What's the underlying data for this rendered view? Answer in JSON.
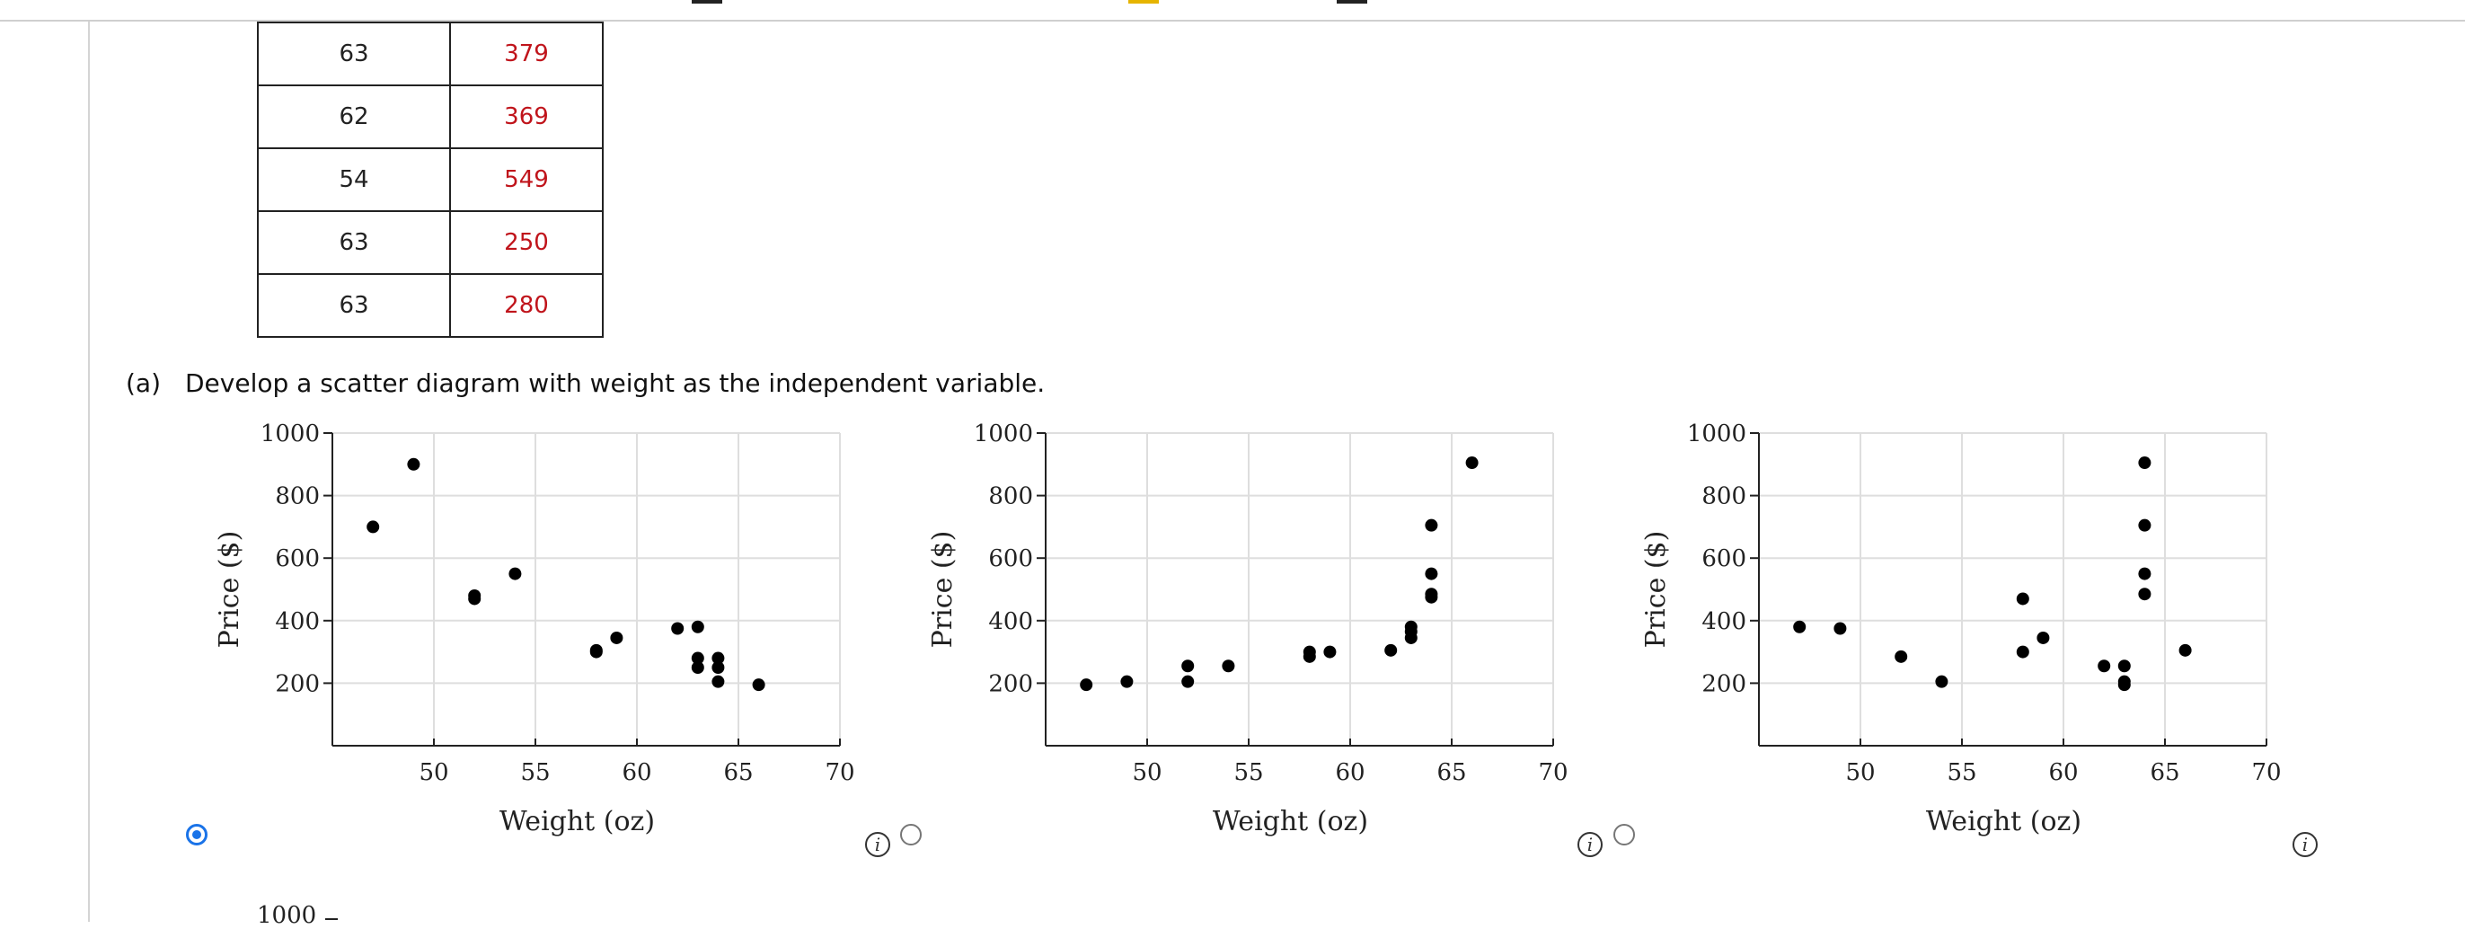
{
  "table": {
    "rows": [
      {
        "weight": "63",
        "price": "379"
      },
      {
        "weight": "62",
        "price": "369"
      },
      {
        "weight": "54",
        "price": "549"
      },
      {
        "weight": "63",
        "price": "250"
      },
      {
        "weight": "63",
        "price": "280"
      }
    ]
  },
  "question": {
    "label": "(a)",
    "text": "Develop a scatter diagram with weight as the independent variable."
  },
  "next_chart_first_tick": "1000",
  "colors": {
    "accent": "#1a73e8",
    "price_text": "#c0141b",
    "point": "#000000"
  },
  "chart_data": [
    {
      "type": "scatter",
      "selected": true,
      "xlabel": "Weight (oz)",
      "ylabel": "Price ($)",
      "xlim": [
        45,
        70
      ],
      "ylim": [
        0,
        1000
      ],
      "xticks": [
        50,
        55,
        60,
        65,
        70
      ],
      "yticks": [
        200,
        400,
        600,
        800,
        1000
      ],
      "grid": true,
      "points": [
        [
          47,
          700
        ],
        [
          49,
          900
        ],
        [
          52,
          470
        ],
        [
          52,
          480
        ],
        [
          54,
          550
        ],
        [
          58,
          300
        ],
        [
          58,
          305
        ],
        [
          59,
          345
        ],
        [
          62,
          375
        ],
        [
          63,
          380
        ],
        [
          63,
          250
        ],
        [
          63,
          280
        ],
        [
          64,
          280
        ],
        [
          64,
          250
        ],
        [
          64,
          205
        ],
        [
          66,
          195
        ]
      ]
    },
    {
      "type": "scatter",
      "selected": false,
      "xlabel": "Weight (oz)",
      "ylabel": "Price ($)",
      "xlim": [
        45,
        70
      ],
      "ylim": [
        0,
        1000
      ],
      "xticks": [
        50,
        55,
        60,
        65,
        70
      ],
      "yticks": [
        200,
        400,
        600,
        800,
        1000
      ],
      "grid": true,
      "points": [
        [
          47,
          195
        ],
        [
          49,
          205
        ],
        [
          52,
          205
        ],
        [
          52,
          255
        ],
        [
          54,
          255
        ],
        [
          58,
          285
        ],
        [
          58,
          300
        ],
        [
          59,
          300
        ],
        [
          62,
          305
        ],
        [
          63,
          345
        ],
        [
          63,
          365
        ],
        [
          63,
          380
        ],
        [
          64,
          475
        ],
        [
          64,
          485
        ],
        [
          64,
          550
        ],
        [
          64,
          705
        ],
        [
          66,
          905
        ]
      ]
    },
    {
      "type": "scatter",
      "selected": false,
      "xlabel": "Weight (oz)",
      "ylabel": "Price ($)",
      "xlim": [
        45,
        70
      ],
      "ylim": [
        0,
        1000
      ],
      "xticks": [
        50,
        55,
        60,
        65,
        70
      ],
      "yticks": [
        200,
        400,
        600,
        800,
        1000
      ],
      "grid": true,
      "points": [
        [
          47,
          380
        ],
        [
          49,
          375
        ],
        [
          52,
          285
        ],
        [
          54,
          205
        ],
        [
          58,
          470
        ],
        [
          58,
          300
        ],
        [
          59,
          345
        ],
        [
          62,
          255
        ],
        [
          63,
          255
        ],
        [
          63,
          205
        ],
        [
          63,
          195
        ],
        [
          64,
          905
        ],
        [
          64,
          705
        ],
        [
          64,
          550
        ],
        [
          64,
          485
        ],
        [
          66,
          305
        ]
      ]
    }
  ]
}
